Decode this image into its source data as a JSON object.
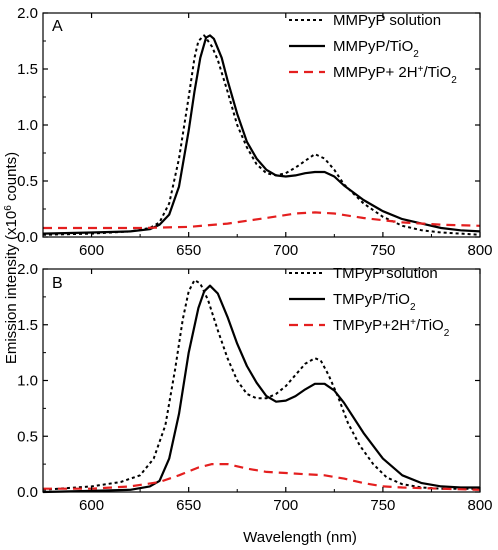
{
  "chart_data": [
    {
      "type": "line",
      "panel_label": "A",
      "xlim": [
        575,
        800
      ],
      "ylim": [
        0,
        2.0
      ],
      "xticks": [
        600,
        650,
        700,
        750,
        800
      ],
      "yticks": [
        0.0,
        0.5,
        1.0,
        1.5,
        2.0
      ],
      "xtick_labels": [
        "600",
        "650",
        "700",
        "750",
        "800"
      ],
      "ytick_labels": [
        "0.0",
        "0.5",
        "1.0",
        "1.5",
        "2.0"
      ],
      "series": [
        {
          "name": "MMPyP solution",
          "color": "#000000",
          "dash": "dotted",
          "label_parts": [
            {
              "t": "MMPyP solution"
            }
          ],
          "points": [
            [
              575,
              0.02
            ],
            [
              600,
              0.03
            ],
            [
              620,
              0.05
            ],
            [
              630,
              0.08
            ],
            [
              635,
              0.13
            ],
            [
              640,
              0.3
            ],
            [
              645,
              0.7
            ],
            [
              650,
              1.25
            ],
            [
              653,
              1.6
            ],
            [
              655,
              1.75
            ],
            [
              658,
              1.8
            ],
            [
              662,
              1.7
            ],
            [
              665,
              1.58
            ],
            [
              670,
              1.3
            ],
            [
              675,
              1.0
            ],
            [
              680,
              0.8
            ],
            [
              685,
              0.65
            ],
            [
              690,
              0.57
            ],
            [
              695,
              0.55
            ],
            [
              700,
              0.57
            ],
            [
              705,
              0.62
            ],
            [
              710,
              0.68
            ],
            [
              715,
              0.74
            ],
            [
              720,
              0.7
            ],
            [
              725,
              0.6
            ],
            [
              730,
              0.47
            ],
            [
              740,
              0.3
            ],
            [
              750,
              0.18
            ],
            [
              760,
              0.1
            ],
            [
              770,
              0.06
            ],
            [
              780,
              0.04
            ],
            [
              790,
              0.03
            ],
            [
              800,
              0.02
            ]
          ]
        },
        {
          "name": "MMPyP/TiO2",
          "color": "#000000",
          "dash": "solid",
          "label_parts": [
            {
              "t": "MMPyP/TiO"
            },
            {
              "t": "2",
              "sub": true
            }
          ],
          "points": [
            [
              575,
              0.03
            ],
            [
              600,
              0.04
            ],
            [
              620,
              0.05
            ],
            [
              630,
              0.07
            ],
            [
              635,
              0.11
            ],
            [
              640,
              0.2
            ],
            [
              645,
              0.45
            ],
            [
              650,
              0.95
            ],
            [
              653,
              1.3
            ],
            [
              656,
              1.6
            ],
            [
              659,
              1.78
            ],
            [
              661,
              1.8
            ],
            [
              663,
              1.77
            ],
            [
              667,
              1.6
            ],
            [
              670,
              1.4
            ],
            [
              675,
              1.1
            ],
            [
              680,
              0.85
            ],
            [
              685,
              0.7
            ],
            [
              690,
              0.6
            ],
            [
              695,
              0.55
            ],
            [
              700,
              0.54
            ],
            [
              705,
              0.55
            ],
            [
              710,
              0.57
            ],
            [
              715,
              0.58
            ],
            [
              720,
              0.58
            ],
            [
              725,
              0.54
            ],
            [
              730,
              0.46
            ],
            [
              740,
              0.33
            ],
            [
              750,
              0.23
            ],
            [
              760,
              0.16
            ],
            [
              770,
              0.12
            ],
            [
              780,
              0.08
            ],
            [
              790,
              0.06
            ],
            [
              800,
              0.05
            ]
          ]
        },
        {
          "name": "MMPyP+ 2H+/TiO2",
          "color": "#e41f1f",
          "dash": "dashed",
          "label_parts": [
            {
              "t": "MMPyP+ 2H"
            },
            {
              "t": "+",
              "sup": true
            },
            {
              "t": "/TiO"
            },
            {
              "t": "2",
              "sub": true
            }
          ],
          "points": [
            [
              575,
              0.08
            ],
            [
              600,
              0.08
            ],
            [
              625,
              0.08
            ],
            [
              650,
              0.09
            ],
            [
              670,
              0.12
            ],
            [
              690,
              0.17
            ],
            [
              705,
              0.21
            ],
            [
              715,
              0.22
            ],
            [
              725,
              0.21
            ],
            [
              740,
              0.17
            ],
            [
              760,
              0.13
            ],
            [
              780,
              0.11
            ],
            [
              800,
              0.1
            ]
          ]
        }
      ]
    },
    {
      "type": "line",
      "panel_label": "B",
      "xlim": [
        575,
        800
      ],
      "ylim": [
        0,
        2.0
      ],
      "xticks": [
        600,
        650,
        700,
        750,
        800
      ],
      "yticks": [
        0.0,
        0.5,
        1.0,
        1.5,
        2.0
      ],
      "xtick_labels": [
        "600",
        "650",
        "700",
        "750",
        "800"
      ],
      "ytick_labels": [
        "0.0",
        "0.5",
        "1.0",
        "1.5",
        "2.0"
      ],
      "series": [
        {
          "name": "TMPyP solution",
          "color": "#000000",
          "dash": "dotted",
          "label_parts": [
            {
              "t": "TMPyP solution"
            }
          ],
          "points": [
            [
              575,
              0.02
            ],
            [
              600,
              0.05
            ],
            [
              615,
              0.09
            ],
            [
              625,
              0.15
            ],
            [
              632,
              0.3
            ],
            [
              638,
              0.6
            ],
            [
              643,
              1.1
            ],
            [
              647,
              1.55
            ],
            [
              650,
              1.8
            ],
            [
              653,
              1.9
            ],
            [
              656,
              1.87
            ],
            [
              660,
              1.72
            ],
            [
              665,
              1.45
            ],
            [
              670,
              1.2
            ],
            [
              675,
              1.0
            ],
            [
              680,
              0.88
            ],
            [
              685,
              0.84
            ],
            [
              690,
              0.84
            ],
            [
              695,
              0.88
            ],
            [
              700,
              0.95
            ],
            [
              705,
              1.05
            ],
            [
              710,
              1.15
            ],
            [
              715,
              1.2
            ],
            [
              718,
              1.18
            ],
            [
              722,
              1.05
            ],
            [
              727,
              0.85
            ],
            [
              732,
              0.62
            ],
            [
              738,
              0.42
            ],
            [
              745,
              0.25
            ],
            [
              752,
              0.13
            ],
            [
              760,
              0.07
            ],
            [
              770,
              0.04
            ],
            [
              780,
              0.03
            ],
            [
              800,
              0.03
            ]
          ]
        },
        {
          "name": "TMPyP/TiO2",
          "color": "#000000",
          "dash": "solid",
          "label_parts": [
            {
              "t": "TMPyP/TiO"
            },
            {
              "t": "2",
              "sub": true
            }
          ],
          "points": [
            [
              575,
              0.0
            ],
            [
              600,
              0.01
            ],
            [
              620,
              0.02
            ],
            [
              630,
              0.05
            ],
            [
              635,
              0.1
            ],
            [
              640,
              0.3
            ],
            [
              645,
              0.7
            ],
            [
              650,
              1.25
            ],
            [
              655,
              1.65
            ],
            [
              658,
              1.8
            ],
            [
              661,
              1.85
            ],
            [
              665,
              1.78
            ],
            [
              670,
              1.57
            ],
            [
              675,
              1.33
            ],
            [
              680,
              1.13
            ],
            [
              685,
              0.98
            ],
            [
              690,
              0.86
            ],
            [
              695,
              0.81
            ],
            [
              700,
              0.82
            ],
            [
              705,
              0.86
            ],
            [
              710,
              0.92
            ],
            [
              715,
              0.97
            ],
            [
              720,
              0.97
            ],
            [
              725,
              0.91
            ],
            [
              730,
              0.8
            ],
            [
              740,
              0.53
            ],
            [
              750,
              0.3
            ],
            [
              760,
              0.15
            ],
            [
              770,
              0.08
            ],
            [
              780,
              0.05
            ],
            [
              790,
              0.04
            ],
            [
              800,
              0.04
            ]
          ]
        },
        {
          "name": "TMPyP+2H+/TiO2",
          "color": "#e41f1f",
          "dash": "dashed",
          "label_parts": [
            {
              "t": "TMPyP+2H"
            },
            {
              "t": "+",
              "sup": true
            },
            {
              "t": "/TiO"
            },
            {
              "t": "2",
              "sub": true
            }
          ],
          "points": [
            [
              575,
              0.03
            ],
            [
              600,
              0.03
            ],
            [
              620,
              0.05
            ],
            [
              635,
              0.09
            ],
            [
              645,
              0.15
            ],
            [
              655,
              0.22
            ],
            [
              662,
              0.25
            ],
            [
              670,
              0.25
            ],
            [
              680,
              0.21
            ],
            [
              690,
              0.18
            ],
            [
              700,
              0.17
            ],
            [
              710,
              0.16
            ],
            [
              720,
              0.15
            ],
            [
              730,
              0.12
            ],
            [
              740,
              0.08
            ],
            [
              750,
              0.05
            ],
            [
              760,
              0.04
            ],
            [
              780,
              0.03
            ],
            [
              800,
              0.02
            ]
          ]
        }
      ]
    }
  ],
  "axes": {
    "xlabel": "Wavelength (nm)",
    "ylabel_parts": [
      {
        "t": "Emission intensity (x10"
      },
      {
        "t": "6",
        "sup": true
      },
      {
        "t": " counts)"
      }
    ]
  }
}
